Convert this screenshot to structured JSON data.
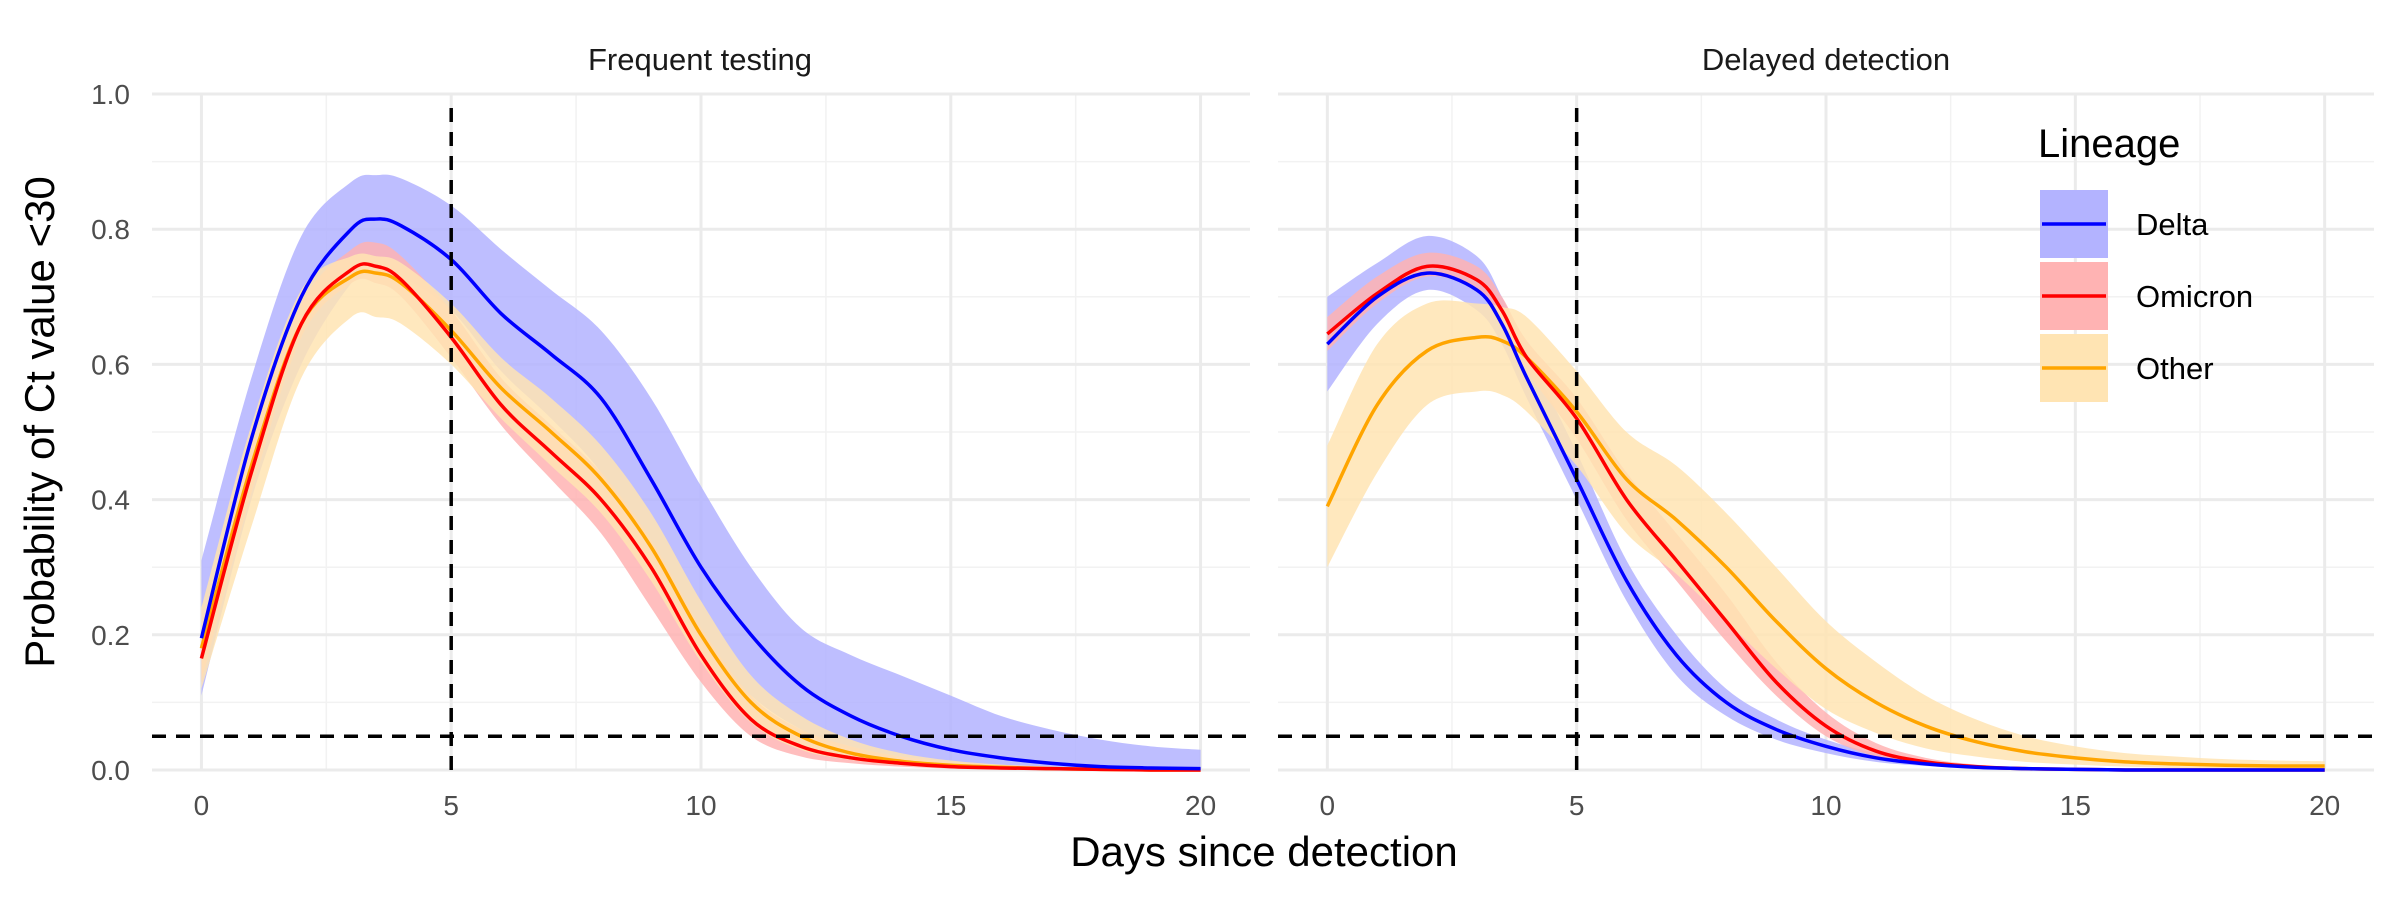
{
  "chart_data": {
    "type": "line",
    "xlabel": "Days since detection",
    "ylabel": "Probability of Ct value <30",
    "xlim": [
      0,
      20
    ],
    "ylim": [
      0,
      1
    ],
    "x_ticks": [
      0,
      5,
      10,
      15,
      20
    ],
    "y_ticks": [
      0.0,
      0.2,
      0.4,
      0.6,
      0.8,
      1.0
    ],
    "y_tick_labels": [
      "0.0",
      "0.2",
      "0.4",
      "0.6",
      "0.8",
      "1.0"
    ],
    "grid": true,
    "reference_lines": {
      "vertical_x": 5,
      "horizontal_y": 0.05,
      "style": "dashed"
    },
    "legend": {
      "title": "Lineage",
      "placement": "top-right",
      "entries": [
        {
          "name": "Delta",
          "color": "#0000ff",
          "band_color": "#b3b3ff"
        },
        {
          "name": "Omicron",
          "color": "#ff0000",
          "band_color": "#ffb3b3"
        },
        {
          "name": "Other",
          "color": "#ffa500",
          "band_color": "#ffe4b3"
        }
      ]
    },
    "x": [
      0,
      1,
      2,
      3,
      3.5,
      4,
      5,
      6,
      7,
      8,
      9,
      10,
      11,
      12,
      13,
      14,
      15,
      16,
      17,
      18,
      19,
      20
    ],
    "panels": [
      {
        "title": "Frequent testing",
        "series": [
          {
            "name": "Delta",
            "values": [
              0.195,
              0.49,
              0.7,
              0.8,
              0.815,
              0.805,
              0.755,
              0.675,
              0.615,
              0.55,
              0.43,
              0.3,
              0.2,
              0.125,
              0.08,
              0.05,
              0.03,
              0.018,
              0.01,
              0.005,
              0.003,
              0.002
            ],
            "lower": [
              0.11,
              0.4,
              0.6,
              0.72,
              0.74,
              0.73,
              0.68,
              0.59,
              0.52,
              0.44,
              0.32,
              0.19,
              0.11,
              0.06,
              0.03,
              0.015,
              0.008,
              0.004,
              0.002,
              0.001,
              0.0,
              0.0
            ],
            "upper": [
              0.31,
              0.58,
              0.79,
              0.87,
              0.88,
              0.875,
              0.835,
              0.77,
              0.71,
              0.65,
              0.55,
              0.42,
              0.3,
              0.21,
              0.17,
              0.14,
              0.11,
              0.08,
              0.06,
              0.045,
              0.035,
              0.03
            ]
          },
          {
            "name": "Omicron",
            "values": [
              0.165,
              0.44,
              0.66,
              0.74,
              0.745,
              0.725,
              0.64,
              0.54,
              0.47,
              0.4,
              0.3,
              0.17,
              0.075,
              0.035,
              0.018,
              0.01,
              0.005,
              0.003,
              0.002,
              0.001,
              0.0,
              0.0
            ],
            "lower": [
              0.13,
              0.41,
              0.64,
              0.72,
              0.72,
              0.7,
              0.61,
              0.51,
              0.43,
              0.35,
              0.24,
              0.13,
              0.05,
              0.02,
              0.01,
              0.005,
              0.002,
              0.001,
              0.0,
              0.0,
              0.0,
              0.0
            ],
            "upper": [
              0.2,
              0.48,
              0.69,
              0.77,
              0.78,
              0.76,
              0.68,
              0.58,
              0.51,
              0.44,
              0.34,
              0.21,
              0.11,
              0.06,
              0.035,
              0.02,
              0.012,
              0.008,
              0.005,
              0.003,
              0.002,
              0.002
            ]
          },
          {
            "name": "Other",
            "values": [
              0.18,
              0.45,
              0.66,
              0.73,
              0.735,
              0.72,
              0.65,
              0.565,
              0.5,
              0.43,
              0.33,
              0.2,
              0.1,
              0.05,
              0.025,
              0.013,
              0.007,
              0.004,
              0.002,
              0.001,
              0.0,
              0.0
            ],
            "lower": [
              0.12,
              0.36,
              0.58,
              0.67,
              0.67,
              0.66,
              0.6,
              0.52,
              0.45,
              0.38,
              0.28,
              0.16,
              0.07,
              0.03,
              0.015,
              0.007,
              0.003,
              0.002,
              0.001,
              0.0,
              0.0,
              0.0
            ],
            "upper": [
              0.24,
              0.51,
              0.71,
              0.76,
              0.76,
              0.75,
              0.69,
              0.61,
              0.55,
              0.48,
              0.38,
              0.25,
              0.14,
              0.08,
              0.045,
              0.025,
              0.014,
              0.008,
              0.005,
              0.003,
              0.002,
              0.002
            ]
          }
        ]
      },
      {
        "title": "Delayed detection",
        "series": [
          {
            "name": "Delta",
            "values": [
              0.63,
              0.7,
              0.735,
              0.71,
              0.66,
              0.58,
              0.43,
              0.28,
              0.17,
              0.1,
              0.06,
              0.035,
              0.018,
              0.009,
              0.004,
              0.002,
              0.001,
              0.0,
              0.0,
              0.0,
              0.0,
              0.0
            ],
            "lower": [
              0.56,
              0.66,
              0.71,
              0.68,
              0.63,
              0.55,
              0.4,
              0.25,
              0.14,
              0.08,
              0.045,
              0.025,
              0.012,
              0.006,
              0.003,
              0.001,
              0.0,
              0.0,
              0.0,
              0.0,
              0.0,
              0.0
            ],
            "upper": [
              0.7,
              0.75,
              0.79,
              0.76,
              0.7,
              0.62,
              0.47,
              0.31,
              0.2,
              0.12,
              0.075,
              0.045,
              0.025,
              0.013,
              0.006,
              0.003,
              0.002,
              0.001,
              0.0,
              0.0,
              0.0,
              0.0
            ]
          },
          {
            "name": "Omicron",
            "values": [
              0.645,
              0.705,
              0.745,
              0.725,
              0.68,
              0.61,
              0.52,
              0.4,
              0.31,
              0.22,
              0.13,
              0.065,
              0.028,
              0.012,
              0.005,
              0.002,
              0.001,
              0.0,
              0.0,
              0.0,
              0.0,
              0.0
            ],
            "lower": [
              0.62,
              0.69,
              0.73,
              0.71,
              0.66,
              0.59,
              0.49,
              0.37,
              0.28,
              0.19,
              0.11,
              0.05,
              0.02,
              0.008,
              0.003,
              0.001,
              0.0,
              0.0,
              0.0,
              0.0,
              0.0,
              0.0
            ],
            "upper": [
              0.67,
              0.73,
              0.765,
              0.745,
              0.7,
              0.635,
              0.55,
              0.44,
              0.35,
              0.26,
              0.16,
              0.085,
              0.04,
              0.018,
              0.008,
              0.004,
              0.002,
              0.001,
              0.0,
              0.0,
              0.0,
              0.0
            ]
          },
          {
            "name": "Other",
            "values": [
              0.39,
              0.54,
              0.62,
              0.64,
              0.635,
              0.61,
              0.53,
              0.43,
              0.37,
              0.3,
              0.22,
              0.15,
              0.1,
              0.065,
              0.042,
              0.027,
              0.018,
              0.012,
              0.009,
              0.007,
              0.006,
              0.006
            ],
            "lower": [
              0.3,
              0.44,
              0.54,
              0.56,
              0.555,
              0.53,
              0.45,
              0.35,
              0.29,
              0.22,
              0.15,
              0.09,
              0.055,
              0.032,
              0.02,
              0.012,
              0.008,
              0.005,
              0.003,
              0.002,
              0.001,
              0.001
            ],
            "upper": [
              0.48,
              0.63,
              0.69,
              0.69,
              0.685,
              0.67,
              0.59,
              0.5,
              0.45,
              0.38,
              0.3,
              0.22,
              0.16,
              0.11,
              0.075,
              0.05,
              0.035,
              0.025,
              0.02,
              0.016,
              0.014,
              0.013
            ]
          }
        ]
      }
    ]
  }
}
